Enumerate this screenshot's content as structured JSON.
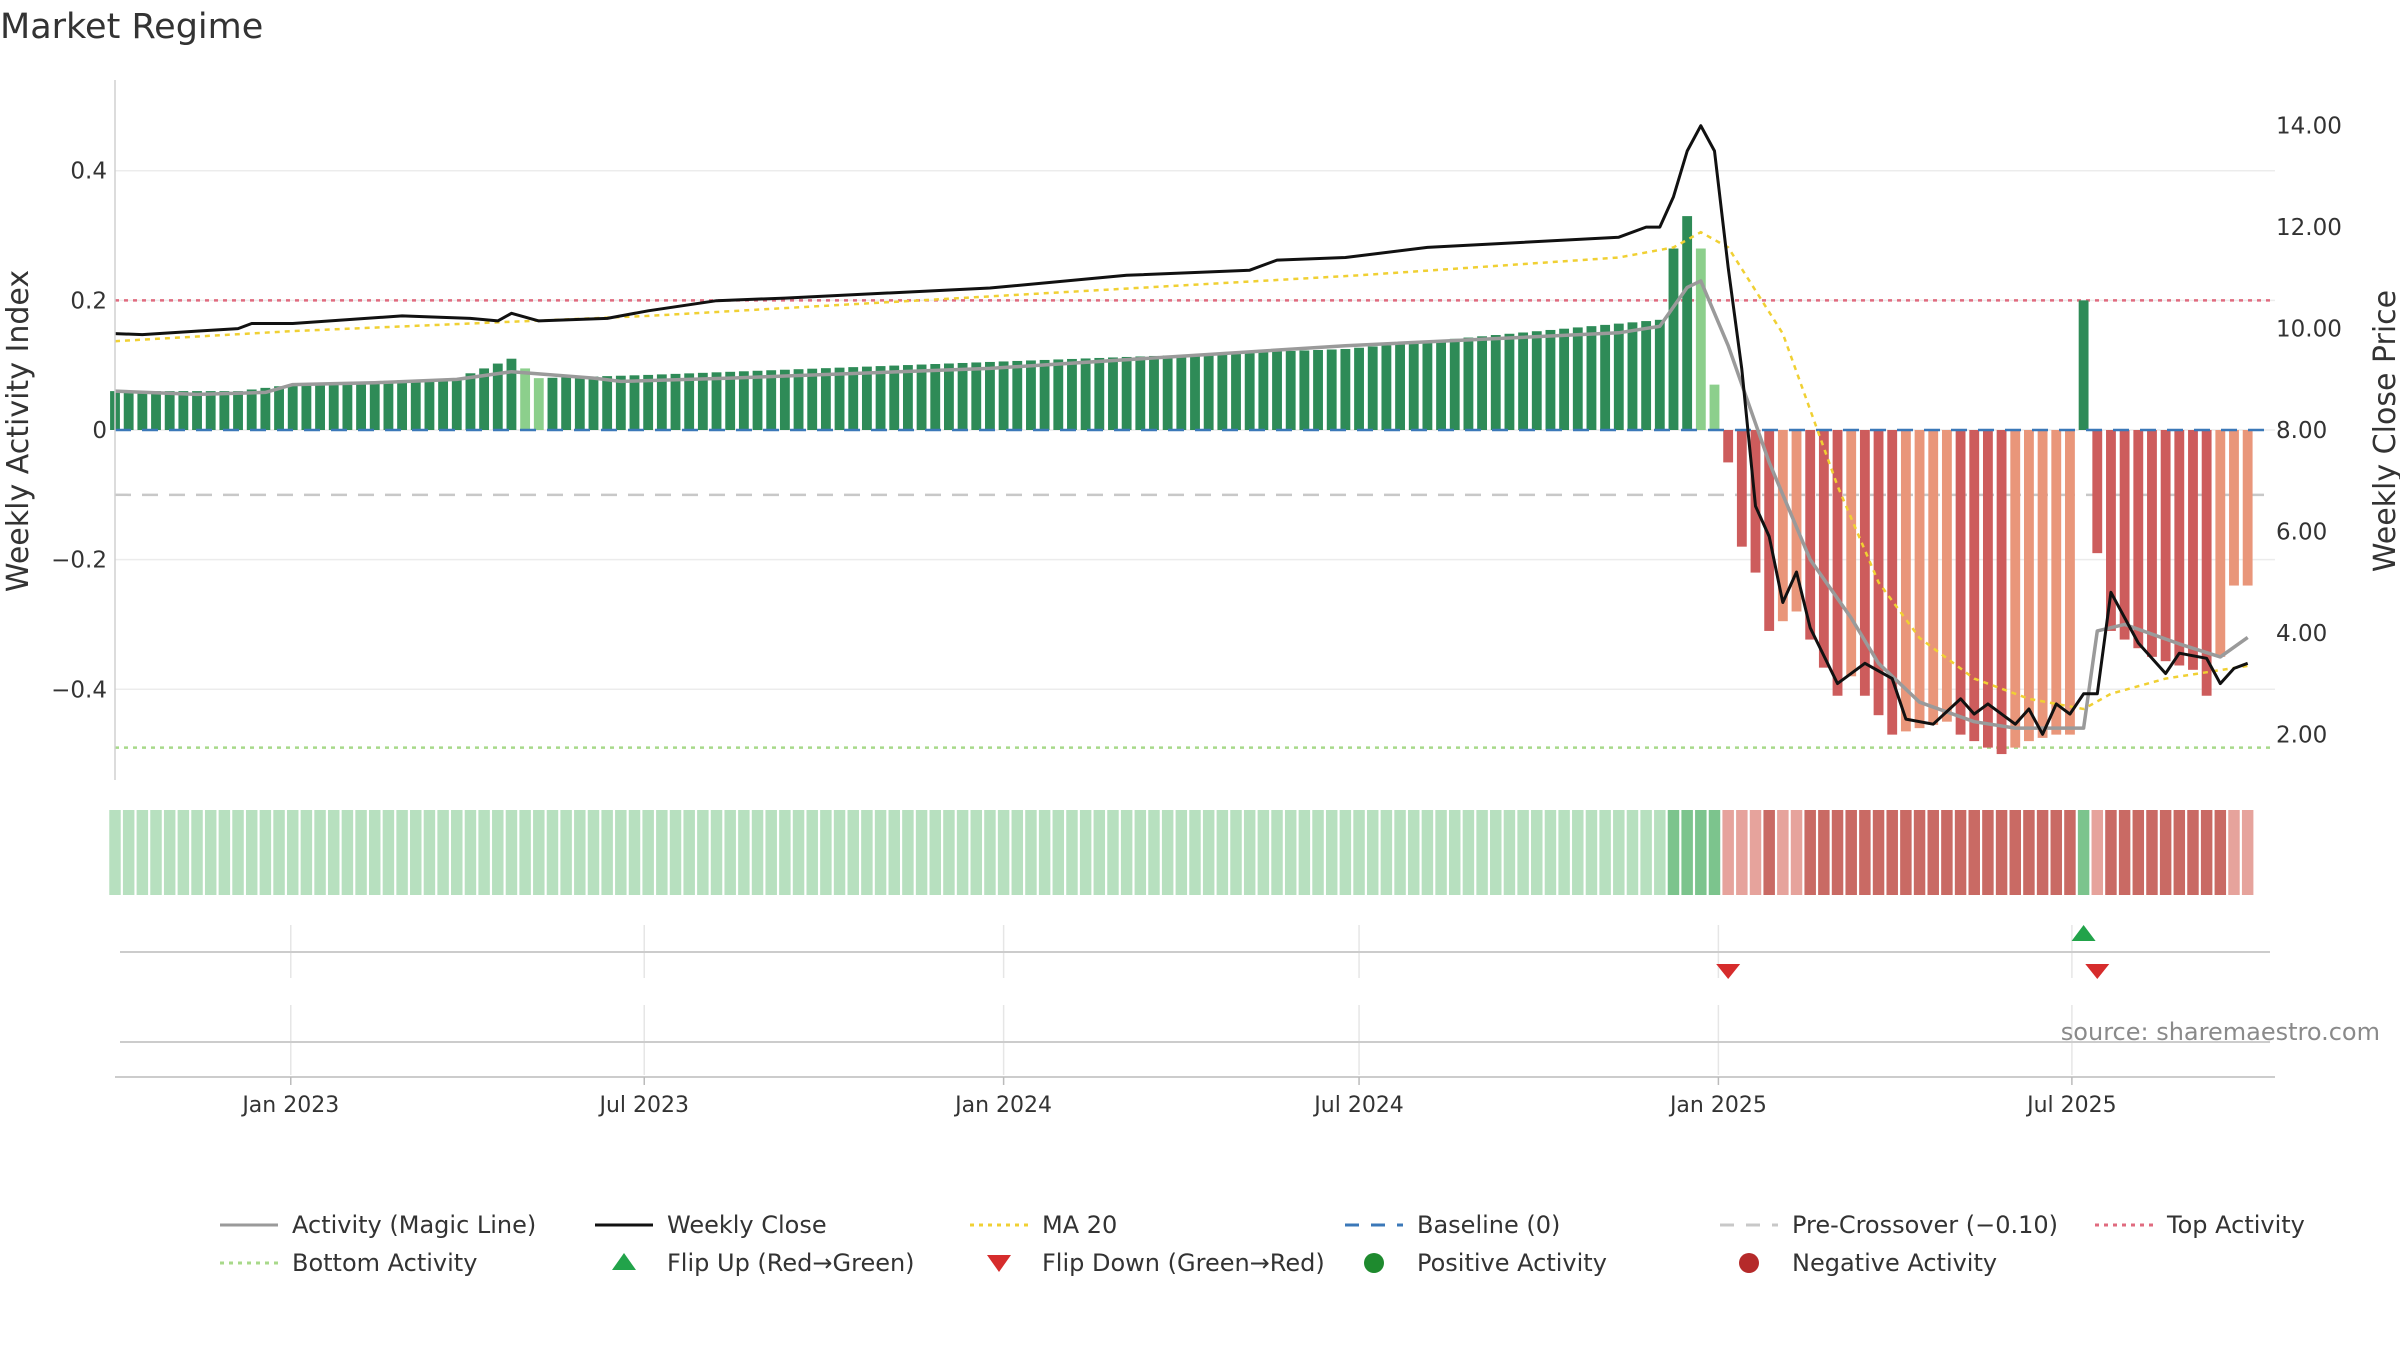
{
  "chart_data": {
    "type": "bar",
    "title": "Market Regime",
    "y_left_label": "Weekly Activity Index",
    "y_right_label": "Weekly Close Price",
    "y_left_ticks": [
      "0.4",
      "0.2",
      "0",
      "−0.2",
      "−0.4"
    ],
    "y_left_range": [
      -0.54,
      0.54
    ],
    "y_right_ticks": [
      "14.00",
      "12.00",
      "10.00",
      "8.00",
      "6.00",
      "4.00",
      "2.00"
    ],
    "y_right_range": [
      1.1,
      14.9
    ],
    "x_range": [
      "2022-10-03",
      "2025-10-13"
    ],
    "x_ticks": [
      {
        "date": "2023-01-01",
        "label": "Jan 2023"
      },
      {
        "date": "2023-07-01",
        "label": "Jul 2023"
      },
      {
        "date": "2024-01-01",
        "label": "Jan 2024"
      },
      {
        "date": "2024-07-01",
        "label": "Jul 2024"
      },
      {
        "date": "2025-01-01",
        "label": "Jan 2025"
      },
      {
        "date": "2025-07-01",
        "label": "Jul 2025"
      }
    ],
    "reference_lines": {
      "top_activity": 0.2,
      "bottom_activity": -0.49,
      "baseline": 0,
      "pre_crossover": -0.1
    },
    "activity_keypoints": [
      [
        "2022-10-03",
        0.06
      ],
      [
        "2022-12-05",
        0.06
      ],
      [
        "2023-01-02",
        0.07
      ],
      [
        "2023-03-27",
        0.08
      ],
      [
        "2023-04-24",
        0.11
      ],
      [
        "2023-05-08",
        0.08
      ],
      [
        "2023-07-03",
        0.085
      ],
      [
        "2023-12-25",
        0.105
      ],
      [
        "2024-06-24",
        0.125
      ],
      [
        "2024-12-02",
        0.17
      ],
      [
        "2024-12-09",
        0.28
      ],
      [
        "2024-12-16",
        0.33
      ],
      [
        "2024-12-23",
        0.28
      ],
      [
        "2024-12-30",
        0.07
      ],
      [
        "2025-01-06",
        -0.05
      ],
      [
        "2025-01-13",
        -0.18
      ],
      [
        "2025-01-20",
        -0.22
      ],
      [
        "2025-01-27",
        -0.31
      ],
      [
        "2025-02-10",
        -0.28
      ],
      [
        "2025-03-03",
        -0.41
      ],
      [
        "2025-03-10",
        -0.38
      ],
      [
        "2025-03-24",
        -0.44
      ],
      [
        "2025-03-31",
        -0.47
      ],
      [
        "2025-04-14",
        -0.46
      ],
      [
        "2025-04-28",
        -0.45
      ],
      [
        "2025-05-05",
        -0.47
      ],
      [
        "2025-05-12",
        -0.48
      ],
      [
        "2025-05-26",
        -0.5
      ],
      [
        "2025-06-09",
        -0.48
      ],
      [
        "2025-06-23",
        -0.47
      ],
      [
        "2025-06-30",
        -0.47
      ],
      [
        "2025-07-07",
        0.2
      ],
      [
        "2025-07-14",
        -0.19
      ],
      [
        "2025-07-21",
        -0.31
      ],
      [
        "2025-08-11",
        -0.35
      ],
      [
        "2025-09-01",
        -0.37
      ],
      [
        "2025-09-08",
        -0.41
      ],
      [
        "2025-09-15",
        -0.35
      ],
      [
        "2025-09-22",
        -0.24
      ]
    ],
    "magic_line_keypoints": [
      [
        "2022-10-03",
        0.06
      ],
      [
        "2022-11-14",
        0.055
      ],
      [
        "2022-12-19",
        0.058
      ],
      [
        "2023-01-02",
        0.07
      ],
      [
        "2023-02-13",
        0.073
      ],
      [
        "2023-03-27",
        0.078
      ],
      [
        "2023-04-24",
        0.09
      ],
      [
        "2023-06-05",
        0.08
      ],
      [
        "2023-06-19",
        0.075
      ],
      [
        "2023-08-14",
        0.08
      ],
      [
        "2023-12-25",
        0.095
      ],
      [
        "2024-06-24",
        0.13
      ],
      [
        "2024-11-11",
        0.15
      ],
      [
        "2024-12-02",
        0.16
      ],
      [
        "2024-12-16",
        0.22
      ],
      [
        "2024-12-23",
        0.23
      ],
      [
        "2025-01-06",
        0.13
      ],
      [
        "2025-01-27",
        -0.05
      ],
      [
        "2025-02-17",
        -0.2
      ],
      [
        "2025-03-10",
        -0.29
      ],
      [
        "2025-03-24",
        -0.36
      ],
      [
        "2025-04-14",
        -0.42
      ],
      [
        "2025-05-12",
        -0.45
      ],
      [
        "2025-06-02",
        -0.46
      ],
      [
        "2025-06-30",
        -0.46
      ],
      [
        "2025-07-07",
        -0.46
      ],
      [
        "2025-07-14",
        -0.31
      ],
      [
        "2025-07-28",
        -0.3
      ],
      [
        "2025-08-25",
        -0.33
      ],
      [
        "2025-09-15",
        -0.35
      ],
      [
        "2025-09-29",
        -0.32
      ]
    ],
    "close_keypoints": [
      [
        "2022-10-03",
        9.9
      ],
      [
        "2022-10-17",
        9.88
      ],
      [
        "2022-11-14",
        9.95
      ],
      [
        "2022-12-05",
        10.0
      ],
      [
        "2022-12-12",
        10.1
      ],
      [
        "2023-01-02",
        10.1
      ],
      [
        "2023-02-27",
        10.25
      ],
      [
        "2023-04-03",
        10.2
      ],
      [
        "2023-04-17",
        10.15
      ],
      [
        "2023-04-24",
        10.3
      ],
      [
        "2023-05-08",
        10.15
      ],
      [
        "2023-06-12",
        10.2
      ],
      [
        "2023-07-03",
        10.35
      ],
      [
        "2023-08-07",
        10.55
      ],
      [
        "2023-09-11",
        10.6
      ],
      [
        "2023-12-25",
        10.8
      ],
      [
        "2024-03-04",
        11.05
      ],
      [
        "2024-05-06",
        11.15
      ],
      [
        "2024-05-20",
        11.35
      ],
      [
        "2024-06-24",
        11.4
      ],
      [
        "2024-08-05",
        11.6
      ],
      [
        "2024-11-11",
        11.8
      ],
      [
        "2024-11-25",
        12.0
      ],
      [
        "2024-12-02",
        12.0
      ],
      [
        "2024-12-09",
        12.6
      ],
      [
        "2024-12-16",
        13.5
      ],
      [
        "2024-12-23",
        14.0
      ],
      [
        "2024-12-30",
        13.5
      ],
      [
        "2025-01-06",
        11.2
      ],
      [
        "2025-01-13",
        9.2
      ],
      [
        "2025-01-20",
        6.5
      ],
      [
        "2025-01-27",
        5.9
      ],
      [
        "2025-02-03",
        4.6
      ],
      [
        "2025-02-10",
        5.2
      ],
      [
        "2025-02-17",
        4.1
      ],
      [
        "2025-03-03",
        3.0
      ],
      [
        "2025-03-17",
        3.4
      ],
      [
        "2025-03-31",
        3.1
      ],
      [
        "2025-04-07",
        2.3
      ],
      [
        "2025-04-21",
        2.2
      ],
      [
        "2025-05-05",
        2.7
      ],
      [
        "2025-05-12",
        2.4
      ],
      [
        "2025-05-19",
        2.6
      ],
      [
        "2025-06-02",
        2.2
      ],
      [
        "2025-06-09",
        2.5
      ],
      [
        "2025-06-16",
        2.0
      ],
      [
        "2025-06-23",
        2.6
      ],
      [
        "2025-06-30",
        2.4
      ],
      [
        "2025-07-07",
        2.8
      ],
      [
        "2025-07-14",
        2.8
      ],
      [
        "2025-07-21",
        4.8
      ],
      [
        "2025-08-04",
        3.8
      ],
      [
        "2025-08-18",
        3.2
      ],
      [
        "2025-08-25",
        3.6
      ],
      [
        "2025-09-08",
        3.5
      ],
      [
        "2025-09-15",
        3.0
      ],
      [
        "2025-09-22",
        3.3
      ],
      [
        "2025-09-29",
        3.4
      ]
    ],
    "ma20_keypoints": [
      [
        "2022-10-03",
        9.75
      ],
      [
        "2023-01-02",
        9.95
      ],
      [
        "2023-07-03",
        10.25
      ],
      [
        "2024-01-01",
        10.65
      ],
      [
        "2024-07-01",
        11.05
      ],
      [
        "2024-11-11",
        11.4
      ],
      [
        "2024-12-09",
        11.6
      ],
      [
        "2024-12-23",
        11.9
      ],
      [
        "2025-01-06",
        11.6
      ],
      [
        "2025-02-03",
        9.9
      ],
      [
        "2025-03-03",
        6.9
      ],
      [
        "2025-03-24",
        5.0
      ],
      [
        "2025-04-14",
        3.9
      ],
      [
        "2025-05-12",
        3.1
      ],
      [
        "2025-06-09",
        2.7
      ],
      [
        "2025-07-07",
        2.5
      ],
      [
        "2025-07-21",
        2.8
      ],
      [
        "2025-08-18",
        3.1
      ],
      [
        "2025-09-29",
        3.35
      ]
    ],
    "regime_strip": "green until 2024-12-30, red from 2025-01-06, single green week 2025-07-07, red afterwards",
    "flip_up_dates": [
      "2025-07-07"
    ],
    "flip_down_dates": [
      "2025-01-06",
      "2025-07-14"
    ],
    "legend_position": "bottom",
    "legend": [
      {
        "label": "Activity (Magic Line)",
        "kind": "line",
        "color": "#9a9a9a",
        "dash": "solid"
      },
      {
        "label": "Weekly Close",
        "kind": "line",
        "color": "#111111",
        "dash": "solid"
      },
      {
        "label": "MA 20",
        "kind": "line",
        "color": "#f0d033",
        "dash": "dotted"
      },
      {
        "label": "Baseline (0)",
        "kind": "line",
        "color": "#3b78b8",
        "dash": "dashed"
      },
      {
        "label": "Pre-Crossover (−0.10)",
        "kind": "line",
        "color": "#c8c8c8",
        "dash": "dashed"
      },
      {
        "label": "Top Activity",
        "kind": "line",
        "color": "#e06b7f",
        "dash": "dotted"
      },
      {
        "label": "Bottom Activity",
        "kind": "line",
        "color": "#a8d98a",
        "dash": "dotted"
      },
      {
        "label": "Flip Up (Red→Green)",
        "kind": "triangle-up",
        "color": "#22a34a"
      },
      {
        "label": "Flip Down (Green→Red)",
        "kind": "triangle-down",
        "color": "#d62c2c"
      },
      {
        "label": "Positive Activity",
        "kind": "circle",
        "color": "#1e8a2e"
      },
      {
        "label": "Negative Activity",
        "kind": "circle",
        "color": "#b52a2a"
      }
    ],
    "colors": {
      "positive_dark": "#2e8b57",
      "positive_light": "#8ccf8c",
      "negative_dark": "#cd5c5c",
      "negative_light": "#e9967a",
      "strip_green_light": "#b7e0bf",
      "strip_green_dark": "#7cc48d",
      "strip_red_light": "#e6a39c",
      "strip_red_dark": "#c96a64"
    },
    "source": "source: sharemaestro.com"
  }
}
